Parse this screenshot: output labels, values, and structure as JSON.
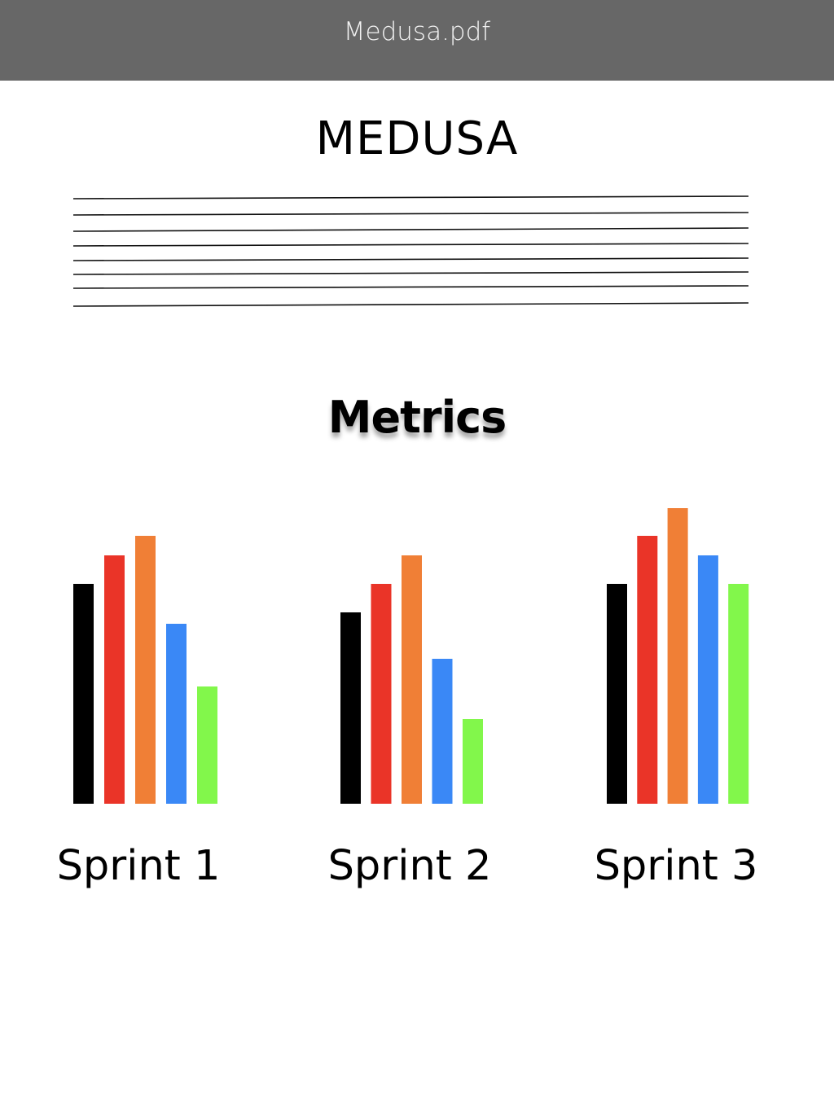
{
  "window": {
    "filename": "Medusa.pdf"
  },
  "document": {
    "title": "MEDUSA",
    "section_heading": "Metrics"
  },
  "chart_data": {
    "type": "bar",
    "categories": [
      "Sprint 1",
      "Sprint 2",
      "Sprint 3"
    ],
    "series": [
      {
        "color": "#000000",
        "values": [
          270,
          235,
          270
        ]
      },
      {
        "color": "#ea3428",
        "values": [
          305,
          270,
          329
        ]
      },
      {
        "color": "#f07f36",
        "values": [
          329,
          305,
          363
        ]
      },
      {
        "color": "#3a88f6",
        "values": [
          221,
          178,
          305
        ]
      },
      {
        "color": "#82f74b",
        "values": [
          144,
          104,
          270
        ]
      }
    ],
    "ylim": [
      0,
      370
    ],
    "grid": false,
    "legend": "none"
  }
}
